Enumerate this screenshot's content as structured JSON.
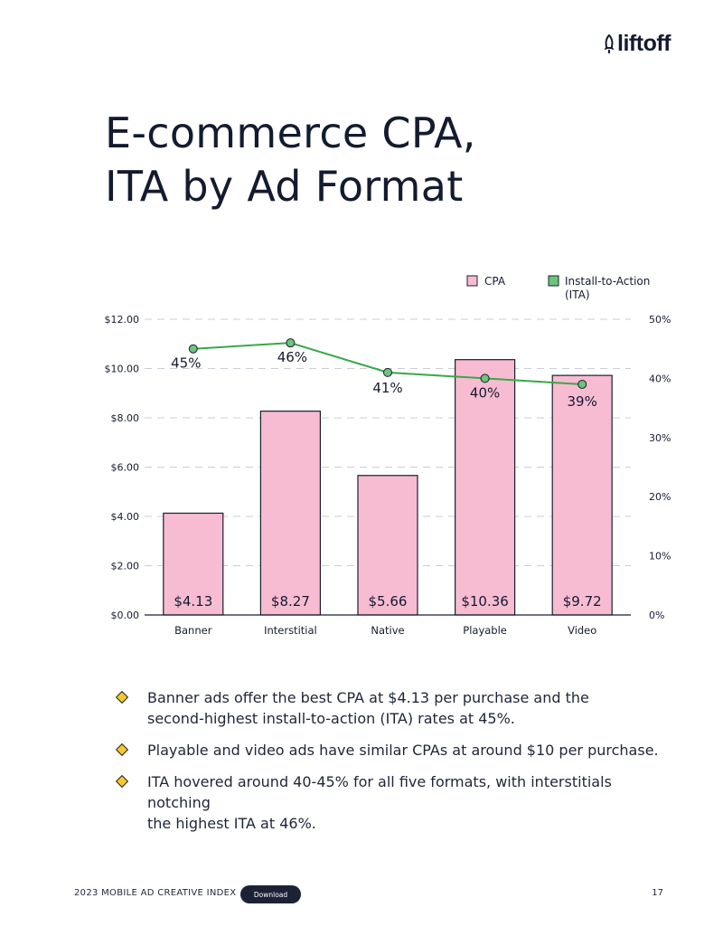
{
  "brand": {
    "logo_text": "liftoff"
  },
  "title": {
    "line1": "E-commerce CPA,",
    "line2": "ITA by Ad Format"
  },
  "colors": {
    "bar_fill": "#f7bcd2",
    "bar_stroke": "#1a1f2e",
    "line": "#39a84a",
    "marker_fill": "#6cc47a",
    "text": "#141b30",
    "grid": "#c9cdd6"
  },
  "chart_data": {
    "type": "bar",
    "categories": [
      "Banner",
      "Interstitial",
      "Native",
      "Playable",
      "Video"
    ],
    "series": [
      {
        "name": "CPA",
        "type": "bar",
        "axis": "left",
        "values": [
          4.13,
          8.27,
          5.66,
          10.36,
          9.72
        ],
        "labels": [
          "$4.13",
          "$8.27",
          "$5.66",
          "$10.36",
          "$9.72"
        ]
      },
      {
        "name": "Install-to-Action (ITA)",
        "type": "line",
        "axis": "right",
        "values": [
          45,
          46,
          41,
          40,
          39
        ],
        "labels": [
          "45%",
          "46%",
          "41%",
          "40%",
          "39%"
        ]
      }
    ],
    "legend": [
      {
        "label": "CPA",
        "color": "#f7bcd2"
      },
      {
        "label_line1": "Install-to-Action",
        "label_line2": "(ITA)",
        "color": "#6cc47a"
      }
    ],
    "legend_position": "top-right",
    "y_left": {
      "ylim": [
        0,
        12
      ],
      "ticks": [
        "$0.00",
        "$2.00",
        "$4.00",
        "$6.00",
        "$8.00",
        "$10.00",
        "$12.00"
      ]
    },
    "y_right": {
      "ylim": [
        0,
        50
      ],
      "ticks": [
        "0%",
        "10%",
        "20%",
        "30%",
        "40%",
        "50%"
      ]
    },
    "grid": "dashed horizontal"
  },
  "bullets": [
    {
      "line1": "Banner ads offer the best CPA at $4.13 per purchase and the",
      "line2": "second-highest install-to-action (ITA) rates at 45%."
    },
    {
      "line1": "Playable and video ads have similar CPAs at around $10 per purchase.",
      "line2": ""
    },
    {
      "line1": "ITA hovered around 40-45% for all five formats, with interstitials notching",
      "line2": "the highest ITA at 46%."
    }
  ],
  "footer": {
    "label": "2023 MOBILE AD CREATIVE INDEX",
    "download": "Download",
    "page": "17"
  }
}
